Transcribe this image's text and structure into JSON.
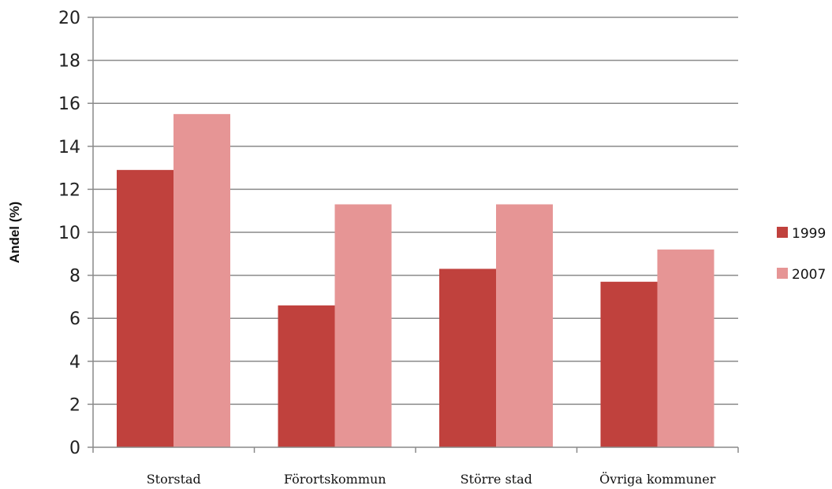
{
  "chart_data": {
    "type": "bar",
    "categories": [
      "Storstad",
      "Förortskommun",
      "Större stad",
      "Övriga kommuner"
    ],
    "series": [
      {
        "name": "1999",
        "values": [
          12.9,
          6.6,
          8.3,
          7.7
        ],
        "color": "#c0413d"
      },
      {
        "name": "2007",
        "values": [
          15.5,
          11.3,
          11.3,
          9.2
        ],
        "color": "#e69595"
      }
    ],
    "title": "",
    "xlabel": "",
    "ylabel": "Andel (%)",
    "ylim": [
      0,
      20
    ],
    "yticks": [
      0,
      2,
      4,
      6,
      8,
      10,
      12,
      14,
      16,
      18,
      20
    ],
    "grid": true,
    "legend": "right",
    "gridline_color": "#8a8a8a"
  }
}
